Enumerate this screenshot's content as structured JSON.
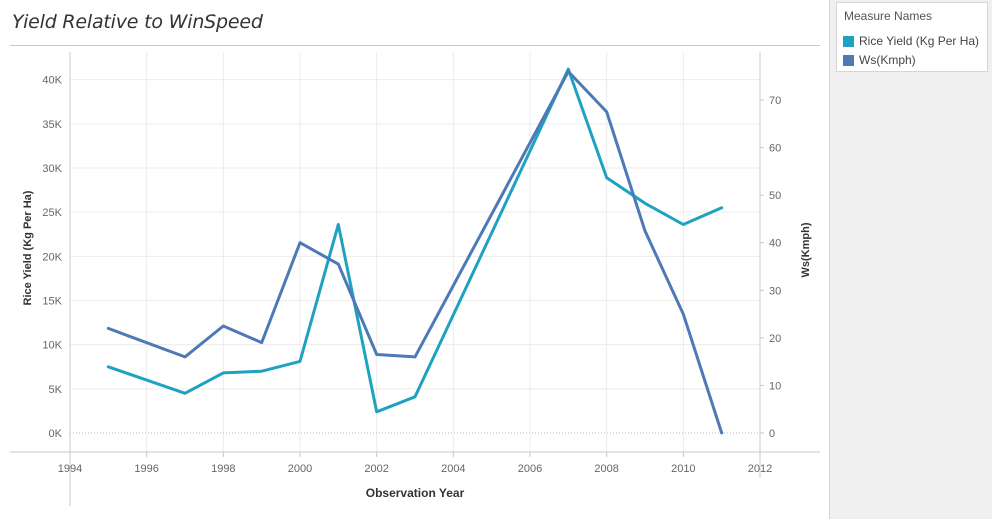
{
  "title": "Yield Relative to WinSpeed",
  "legend": {
    "title": "Measure Names",
    "items": [
      {
        "label": "Rice Yield (Kg Per Ha)",
        "color": "#1fa2c1"
      },
      {
        "label": "Ws(Kmph)",
        "color": "#4e79b7"
      }
    ]
  },
  "chart_data": {
    "type": "line",
    "xlabel": "Observation Year",
    "ylabel_left": "Rice Yield (Kg Per Ha)",
    "ylabel_right": "Ws(Kmph)",
    "xlim": [
      1994,
      2012
    ],
    "xticks": [
      1994,
      1996,
      1998,
      2000,
      2002,
      2004,
      2006,
      2008,
      2010,
      2012
    ],
    "ylim_left": [
      0,
      42000
    ],
    "yticks_left": [
      {
        "value": 0,
        "label": "0K"
      },
      {
        "value": 5000,
        "label": "5K"
      },
      {
        "value": 10000,
        "label": "10K"
      },
      {
        "value": 15000,
        "label": "15K"
      },
      {
        "value": 20000,
        "label": "20K"
      },
      {
        "value": 25000,
        "label": "25K"
      },
      {
        "value": 30000,
        "label": "30K"
      },
      {
        "value": 35000,
        "label": "35K"
      },
      {
        "value": 40000,
        "label": "40K"
      }
    ],
    "ylim_right": [
      0,
      78
    ],
    "yticks_right": [
      {
        "value": 0,
        "label": "0"
      },
      {
        "value": 10,
        "label": "10"
      },
      {
        "value": 20,
        "label": "20"
      },
      {
        "value": 30,
        "label": "30"
      },
      {
        "value": 40,
        "label": "40"
      },
      {
        "value": 50,
        "label": "50"
      },
      {
        "value": 60,
        "label": "60"
      },
      {
        "value": 70,
        "label": "70"
      }
    ],
    "grid": true,
    "legend_position": "top-right",
    "series": [
      {
        "name": "Rice Yield (Kg Per Ha)",
        "axis": "left",
        "color": "#1fa2c1",
        "x": [
          1995,
          1997,
          1998,
          1999,
          2000,
          2001,
          2002,
          2003,
          2007,
          2008,
          2009,
          2010,
          2011
        ],
        "y": [
          7500,
          4500,
          6800,
          7000,
          8100,
          23600,
          2400,
          4100,
          41200,
          28900,
          26000,
          23600,
          25500
        ]
      },
      {
        "name": "Ws(Kmph)",
        "axis": "right",
        "color": "#4e79b7",
        "x": [
          1995,
          1997,
          1998,
          1999,
          2000,
          2001,
          2002,
          2003,
          2007,
          2008,
          2009,
          2010,
          2011
        ],
        "y": [
          22,
          16,
          22.5,
          19,
          40,
          35.5,
          16.5,
          16,
          76,
          67.5,
          42.5,
          25,
          0
        ]
      }
    ]
  }
}
